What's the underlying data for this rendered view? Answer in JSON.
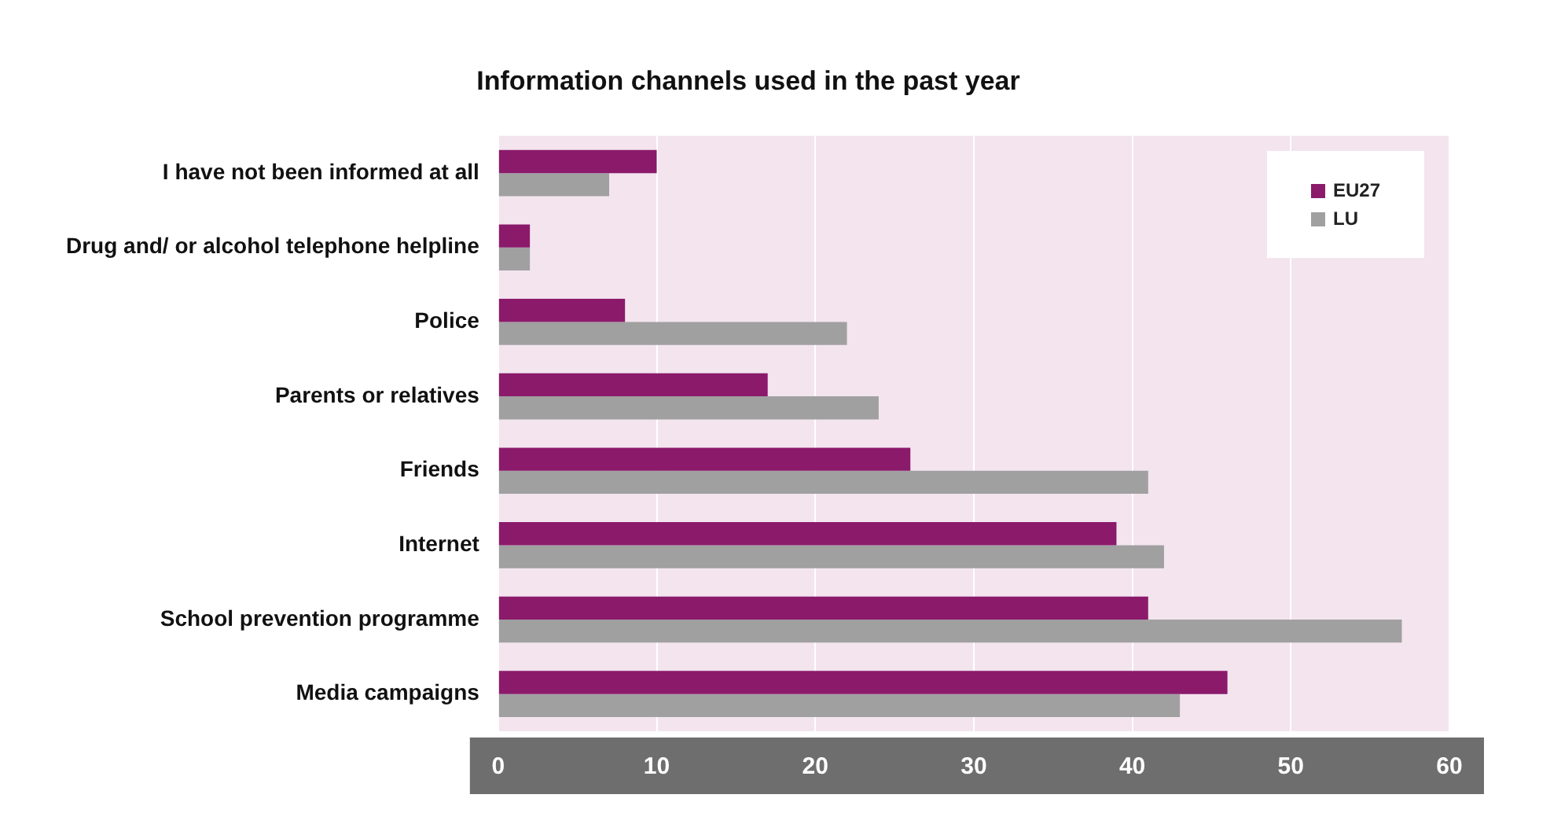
{
  "chart_data": {
    "type": "bar",
    "orientation": "horizontal",
    "title": "Information channels used in the past year",
    "categories": [
      "I have not been informed at all",
      "Drug and/ or alcohol telephone helpline",
      "Police",
      "Parents or relatives",
      "Friends",
      "Internet",
      "School prevention programme",
      "Media campaigns"
    ],
    "series": [
      {
        "name": "EU27",
        "color": "#8b1a6b",
        "values": [
          10,
          2,
          8,
          17,
          26,
          39,
          41,
          46
        ]
      },
      {
        "name": "LU",
        "color": "#a0a0a0",
        "values": [
          7,
          2,
          22,
          24,
          41,
          42,
          57,
          43
        ]
      }
    ],
    "xlim": [
      0,
      60
    ],
    "xticks": [
      0,
      10,
      20,
      30,
      40,
      50,
      60
    ],
    "grid": "x",
    "legend": "top right"
  }
}
